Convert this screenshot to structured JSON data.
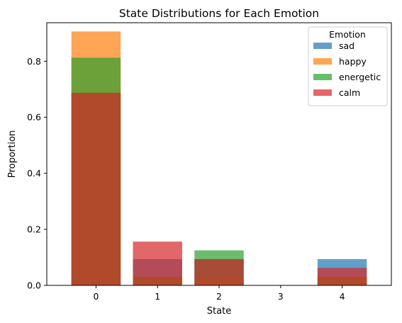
{
  "chart_data": {
    "type": "bar",
    "title": "State Distributions for Each Emotion",
    "xlabel": "State",
    "ylabel": "Proportion",
    "categories": [
      "0",
      "1",
      "2",
      "3",
      "4"
    ],
    "ylim": [
      0,
      0.9375
    ],
    "yticks": [
      "0.0",
      "0.2",
      "0.4",
      "0.6",
      "0.8"
    ],
    "ytick_values": [
      0,
      0.2,
      0.4,
      0.6,
      0.8
    ],
    "overlay": true,
    "opacity": 0.7,
    "legend": {
      "title": "Emotion",
      "position": "top-right"
    },
    "series": [
      {
        "name": "sad",
        "color": "#1f77b4",
        "values": [
          0.6875,
          0.09375,
          0.09375,
          0,
          0.09375
        ]
      },
      {
        "name": "happy",
        "color": "#ff7f0e",
        "values": [
          0.90625,
          0.03125,
          0.03125,
          0,
          0.03125
        ]
      },
      {
        "name": "energetic",
        "color": "#2ca02c",
        "values": [
          0.8125,
          0.03125,
          0.125,
          0,
          0.03125
        ]
      },
      {
        "name": "calm",
        "color": "#d62728",
        "values": [
          0.6875,
          0.15625,
          0.09375,
          0,
          0.0625
        ]
      }
    ]
  }
}
